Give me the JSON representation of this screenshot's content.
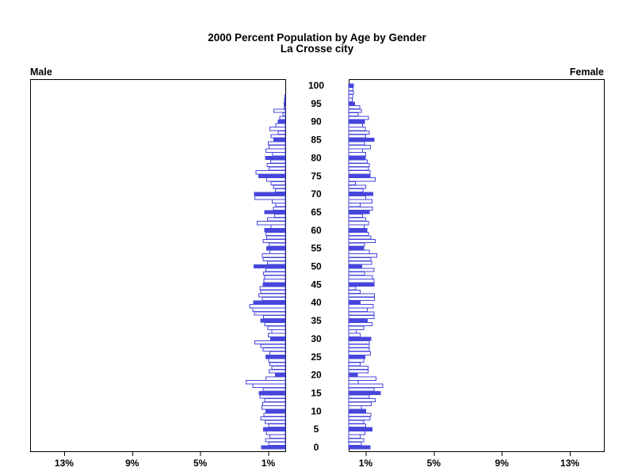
{
  "header": {
    "title_line1": "2000 Percent Population by Age by Gender",
    "title_line2": "La Crosse city"
  },
  "panels": {
    "male_label": "Male",
    "female_label": "Female"
  },
  "chart_data": {
    "type": "bar",
    "subtype": "population-pyramid",
    "title": "2000 Percent Population by Age by Gender",
    "subtitle": "La Crosse city",
    "left_series_label": "Male",
    "right_series_label": "Female",
    "unit": "percent of total population",
    "xlim": [
      0,
      15
    ],
    "x_tick_percents": [
      1,
      5,
      9,
      13
    ],
    "x_tick_labels_male": [
      "13%",
      "9%",
      "5%",
      "1%"
    ],
    "x_tick_labels_female": [
      "1%",
      "5%",
      "9%",
      "13%"
    ],
    "age_axis": {
      "min": 0,
      "max": 100,
      "tick_step": 5,
      "tick_labels": [
        "0",
        "5",
        "10",
        "15",
        "20",
        "25",
        "30",
        "35",
        "40",
        "45",
        "50",
        "55",
        "60",
        "65",
        "70",
        "75",
        "80",
        "85",
        "90",
        "95",
        "100"
      ]
    },
    "highlight_rule": "bars at ages divisible by 5 are filled solid blue; all other ages are white with blue outline",
    "colors": {
      "bar_outline": "#4646dc",
      "bar_fill_solid": "#4646dc",
      "bar_fill_hollow": "#ffffff",
      "axis": "#000000",
      "text": "#000000",
      "background": "#ffffff"
    },
    "ages": [
      0,
      1,
      2,
      3,
      4,
      5,
      6,
      7,
      8,
      9,
      10,
      11,
      12,
      13,
      14,
      15,
      16,
      17,
      18,
      19,
      20,
      21,
      22,
      23,
      24,
      25,
      26,
      27,
      28,
      29,
      30,
      31,
      32,
      33,
      34,
      35,
      36,
      37,
      38,
      39,
      40,
      41,
      42,
      43,
      44,
      45,
      46,
      47,
      48,
      49,
      50,
      51,
      52,
      53,
      54,
      55,
      56,
      57,
      58,
      59,
      60,
      61,
      62,
      63,
      64,
      65,
      66,
      67,
      68,
      69,
      70,
      71,
      72,
      73,
      74,
      75,
      76,
      77,
      78,
      79,
      80,
      81,
      82,
      83,
      84,
      85,
      86,
      87,
      88,
      89,
      90,
      91,
      92,
      93,
      94,
      95,
      96,
      97,
      98,
      99,
      100
    ],
    "series": [
      {
        "name": "Male",
        "values": [
          1.4,
          0.98,
          1.17,
          0.9,
          1.11,
          1.29,
          0.98,
          1.18,
          1.45,
          1.25,
          1.14,
          1.37,
          1.32,
          1.21,
          1.48,
          1.53,
          1.3,
          1.9,
          2.3,
          1.15,
          0.59,
          0.95,
          0.8,
          0.9,
          0.98,
          1.14,
          0.9,
          1.3,
          1.45,
          1.8,
          0.86,
          1.0,
          0.79,
          1.03,
          1.21,
          1.45,
          1.29,
          1.81,
          1.92,
          2.1,
          1.87,
          1.35,
          1.55,
          1.45,
          1.5,
          1.3,
          1.25,
          1.21,
          1.29,
          1.14,
          1.84,
          1.05,
          1.31,
          1.35,
          0.9,
          1.1,
          0.95,
          1.3,
          1.1,
          1.15,
          1.2,
          0.85,
          1.65,
          1.05,
          0.64,
          1.21,
          0.7,
          0.56,
          0.78,
          1.8,
          1.81,
          0.59,
          0.7,
          0.83,
          1.09,
          1.56,
          1.73,
          0.95,
          1.06,
          0.86,
          1.17,
          0.75,
          1.14,
          0.95,
          1.01,
          0.67,
          0.83,
          0.43,
          0.9,
          0.56,
          0.42,
          0.33,
          0.15,
          0.67,
          0.08,
          0.06,
          0.04,
          0.02,
          0.0,
          0.0,
          0.0
        ]
      },
      {
        "name": "Female",
        "values": [
          1.25,
          0.75,
          0.88,
          0.67,
          0.95,
          1.38,
          1.0,
          0.88,
          1.25,
          1.3,
          1.0,
          0.75,
          1.33,
          1.55,
          1.21,
          1.87,
          1.5,
          2.0,
          0.55,
          1.6,
          0.51,
          1.15,
          1.15,
          0.67,
          0.89,
          0.95,
          1.28,
          1.21,
          1.21,
          1.21,
          1.3,
          0.67,
          0.45,
          0.88,
          1.38,
          1.09,
          1.48,
          1.48,
          1.09,
          1.45,
          0.67,
          1.51,
          1.51,
          0.67,
          0.42,
          1.48,
          1.48,
          1.4,
          0.93,
          1.48,
          0.78,
          1.35,
          1.3,
          1.65,
          1.2,
          0.89,
          0.93,
          1.55,
          1.3,
          1.17,
          1.06,
          0.9,
          1.17,
          1.01,
          0.82,
          1.21,
          1.4,
          0.67,
          1.38,
          1.0,
          1.42,
          0.85,
          1.01,
          0.4,
          1.56,
          1.25,
          1.25,
          1.17,
          1.21,
          1.09,
          0.98,
          1.01,
          0.82,
          1.28,
          0.93,
          1.48,
          1.01,
          1.21,
          0.97,
          0.82,
          0.93,
          1.17,
          0.55,
          0.75,
          0.65,
          0.34,
          0.2,
          0.23,
          0.28,
          0.25,
          0.28
        ]
      }
    ]
  }
}
